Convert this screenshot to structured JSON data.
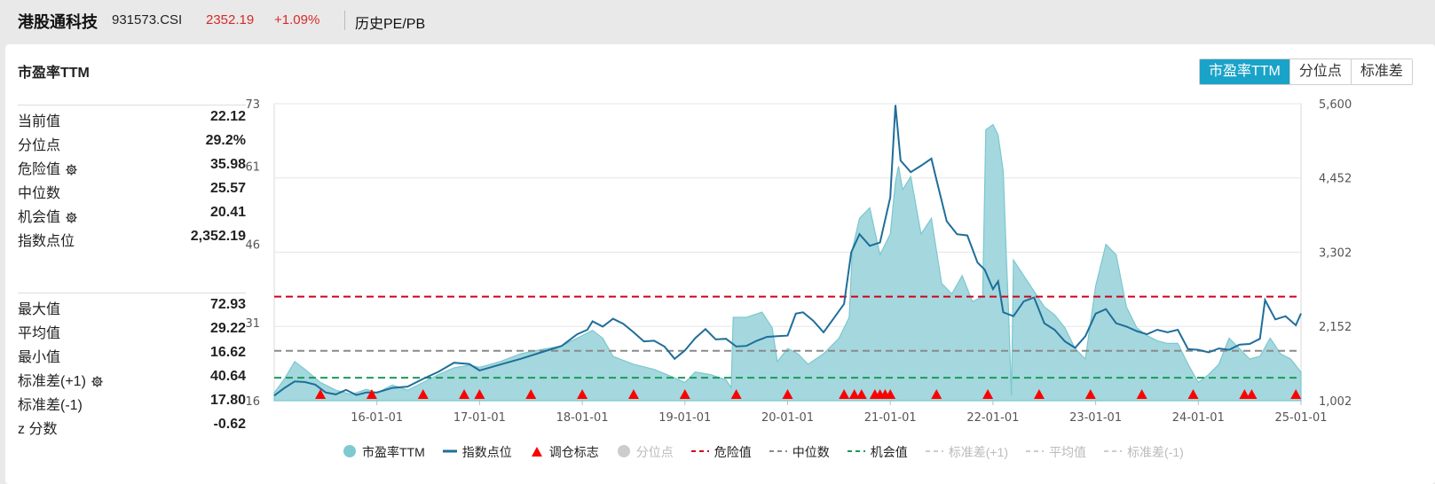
{
  "header": {
    "name": "港股通科技",
    "code": "931573.CSI",
    "price": "2352.19",
    "change": "+1.09%",
    "tab": "历史PE/PB"
  },
  "panel": {
    "title": "市盈率TTM",
    "segments": [
      {
        "label": "市盈率TTM",
        "active": true
      },
      {
        "label": "分位点",
        "active": false
      },
      {
        "label": "标准差",
        "active": false
      }
    ]
  },
  "stats_top": [
    {
      "label": "当前值",
      "value": "22.12",
      "gear": false
    },
    {
      "label": "分位点",
      "value": "29.2%",
      "gear": false
    },
    {
      "label": "危险值",
      "value": "35.98",
      "gear": true
    },
    {
      "label": "中位数",
      "value": "25.57",
      "gear": false
    },
    {
      "label": "机会值",
      "value": "20.41",
      "gear": true
    },
    {
      "label": "指数点位",
      "value": "2,352.19",
      "gear": false
    }
  ],
  "stats_bottom": [
    {
      "label": "最大值",
      "value": "72.93",
      "gear": false
    },
    {
      "label": "平均值",
      "value": "29.22",
      "gear": false
    },
    {
      "label": "最小值",
      "value": "16.62",
      "gear": false
    },
    {
      "label": "标准差(+1)",
      "value": "40.64",
      "gear": true
    },
    {
      "label": "标准差(-1)",
      "value": "17.80",
      "gear": false
    },
    {
      "label": "z 分数",
      "value": "-0.62",
      "gear": false
    }
  ],
  "colors": {
    "pe_fill": "#9fd6dc",
    "pe_stroke": "#7cc7cf",
    "index_line": "#1f6e99",
    "danger": "#d0021b",
    "median": "#8a8a8a",
    "opportunity": "#1a9a5a",
    "marker": "#ff0000",
    "accent": "#1aa3c8"
  },
  "legend": [
    {
      "label": "市盈率TTM",
      "kind": "dot",
      "color": "#7fc9d3",
      "dim": false
    },
    {
      "label": "指数点位",
      "kind": "line",
      "color": "#1f6e99",
      "dim": false
    },
    {
      "label": "调仓标志",
      "kind": "triangle",
      "color": "#ff0000",
      "dim": false
    },
    {
      "label": "分位点",
      "kind": "dot",
      "color": "#cccccc",
      "dim": true
    },
    {
      "label": "危险值",
      "kind": "dash",
      "color": "#d0021b",
      "dim": false
    },
    {
      "label": "中位数",
      "kind": "dash",
      "color": "#8a8a8a",
      "dim": false
    },
    {
      "label": "机会值",
      "kind": "dash",
      "color": "#1a9a5a",
      "dim": false
    },
    {
      "label": "标准差(+1)",
      "kind": "dash",
      "color": "#cccccc",
      "dim": true
    },
    {
      "label": "平均值",
      "kind": "dash",
      "color": "#cccccc",
      "dim": true
    },
    {
      "label": "标准差(-1)",
      "kind": "dash",
      "color": "#cccccc",
      "dim": true
    }
  ],
  "chart_data": {
    "type": "area",
    "x_ticks": [
      "16-01-01",
      "17-01-01",
      "18-01-01",
      "19-01-01",
      "20-01-01",
      "21-01-01",
      "22-01-01",
      "23-01-01",
      "24-01-01",
      "25-01-01"
    ],
    "x_range": [
      2015.0,
      2025.0
    ],
    "y_left_ticks": [
      "73",
      "61",
      "46",
      "31",
      "16"
    ],
    "y_left_range": [
      16,
      73
    ],
    "y_right_ticks": [
      "5,600",
      "4,452",
      "3,302",
      "2,152",
      "1,002"
    ],
    "y_right_range": [
      1002,
      5600
    ],
    "reference_lines": [
      {
        "name": "危险值",
        "value": 35.98
      },
      {
        "name": "中位数",
        "value": 25.57
      },
      {
        "name": "机会值",
        "value": 20.41
      }
    ],
    "series": [
      {
        "name": "市盈率TTM",
        "axis": "left",
        "points": [
          [
            2015.0,
            17.5
          ],
          [
            2015.1,
            20.2
          ],
          [
            2015.2,
            23.5
          ],
          [
            2015.3,
            22.0
          ],
          [
            2015.45,
            19.5
          ],
          [
            2015.6,
            18.0
          ],
          [
            2015.75,
            17.2
          ],
          [
            2015.9,
            18.2
          ],
          [
            2016.0,
            17.5
          ],
          [
            2016.15,
            19.0
          ],
          [
            2016.3,
            18.0
          ],
          [
            2016.45,
            19.5
          ],
          [
            2016.6,
            21.0
          ],
          [
            2016.75,
            22.3
          ],
          [
            2016.9,
            22.8
          ],
          [
            2017.0,
            22.4
          ],
          [
            2017.2,
            23.5
          ],
          [
            2017.4,
            25.0
          ],
          [
            2017.6,
            25.8
          ],
          [
            2017.8,
            26.5
          ],
          [
            2018.0,
            28.5
          ],
          [
            2018.1,
            29.5
          ],
          [
            2018.2,
            28.0
          ],
          [
            2018.3,
            24.5
          ],
          [
            2018.5,
            23.0
          ],
          [
            2018.7,
            22.0
          ],
          [
            2018.85,
            20.8
          ],
          [
            2019.0,
            19.5
          ],
          [
            2019.1,
            21.5
          ],
          [
            2019.25,
            21.0
          ],
          [
            2019.4,
            20.0
          ],
          [
            2019.45,
            18.5
          ],
          [
            2019.47,
            32.0
          ],
          [
            2019.6,
            32.0
          ],
          [
            2019.75,
            33.0
          ],
          [
            2019.85,
            30.0
          ],
          [
            2019.9,
            23.5
          ],
          [
            2020.0,
            26.0
          ],
          [
            2020.1,
            25.0
          ],
          [
            2020.2,
            23.0
          ],
          [
            2020.35,
            25.0
          ],
          [
            2020.5,
            28.0
          ],
          [
            2020.6,
            32.0
          ],
          [
            2020.63,
            45.0
          ],
          [
            2020.7,
            51.0
          ],
          [
            2020.8,
            53.0
          ],
          [
            2020.9,
            44.0
          ],
          [
            2021.0,
            48.0
          ],
          [
            2021.05,
            58.0
          ],
          [
            2021.08,
            61.0
          ],
          [
            2021.12,
            56.5
          ],
          [
            2021.2,
            59.0
          ],
          [
            2021.3,
            48.0
          ],
          [
            2021.4,
            51.0
          ],
          [
            2021.5,
            38.5
          ],
          [
            2021.6,
            36.5
          ],
          [
            2021.7,
            40.0
          ],
          [
            2021.8,
            35.0
          ],
          [
            2021.9,
            36.0
          ],
          [
            2021.93,
            68.0
          ],
          [
            2022.0,
            69.0
          ],
          [
            2022.05,
            67.0
          ],
          [
            2022.1,
            60.0
          ],
          [
            2022.13,
            44.0
          ],
          [
            2022.15,
            34.0
          ],
          [
            2022.18,
            17.0
          ],
          [
            2022.2,
            43.0
          ],
          [
            2022.3,
            40.0
          ],
          [
            2022.4,
            37.0
          ],
          [
            2022.5,
            34.0
          ],
          [
            2022.6,
            32.5
          ],
          [
            2022.7,
            30.0
          ],
          [
            2022.8,
            26.0
          ],
          [
            2022.9,
            24.0
          ],
          [
            2023.0,
            38.0
          ],
          [
            2023.1,
            46.0
          ],
          [
            2023.2,
            44.0
          ],
          [
            2023.3,
            34.0
          ],
          [
            2023.4,
            30.0
          ],
          [
            2023.5,
            28.5
          ],
          [
            2023.6,
            27.5
          ],
          [
            2023.7,
            27.0
          ],
          [
            2023.8,
            27.0
          ],
          [
            2023.9,
            23.0
          ],
          [
            2024.0,
            19.5
          ],
          [
            2024.1,
            21.0
          ],
          [
            2024.2,
            23.0
          ],
          [
            2024.3,
            28.0
          ],
          [
            2024.4,
            26.0
          ],
          [
            2024.5,
            24.0
          ],
          [
            2024.6,
            24.5
          ],
          [
            2024.7,
            28.0
          ],
          [
            2024.8,
            25.0
          ],
          [
            2024.9,
            24.0
          ],
          [
            2025.0,
            21.5
          ]
        ]
      },
      {
        "name": "指数点位",
        "axis": "right",
        "points": [
          [
            2015.0,
            1080
          ],
          [
            2015.1,
            1200
          ],
          [
            2015.2,
            1300
          ],
          [
            2015.3,
            1290
          ],
          [
            2015.4,
            1250
          ],
          [
            2015.5,
            1130
          ],
          [
            2015.6,
            1100
          ],
          [
            2015.7,
            1170
          ],
          [
            2015.8,
            1090
          ],
          [
            2015.9,
            1130
          ],
          [
            2016.0,
            1130
          ],
          [
            2016.15,
            1200
          ],
          [
            2016.3,
            1220
          ],
          [
            2016.45,
            1340
          ],
          [
            2016.6,
            1450
          ],
          [
            2016.75,
            1590
          ],
          [
            2016.9,
            1570
          ],
          [
            2017.0,
            1470
          ],
          [
            2017.2,
            1560
          ],
          [
            2017.4,
            1650
          ],
          [
            2017.6,
            1750
          ],
          [
            2017.8,
            1850
          ],
          [
            2017.95,
            2030
          ],
          [
            2018.05,
            2100
          ],
          [
            2018.1,
            2230
          ],
          [
            2018.2,
            2150
          ],
          [
            2018.3,
            2270
          ],
          [
            2018.4,
            2190
          ],
          [
            2018.5,
            2060
          ],
          [
            2018.6,
            1920
          ],
          [
            2018.7,
            1930
          ],
          [
            2018.8,
            1840
          ],
          [
            2018.9,
            1650
          ],
          [
            2019.0,
            1780
          ],
          [
            2019.1,
            1970
          ],
          [
            2019.2,
            2110
          ],
          [
            2019.3,
            1950
          ],
          [
            2019.4,
            1960
          ],
          [
            2019.5,
            1840
          ],
          [
            2019.6,
            1850
          ],
          [
            2019.7,
            1930
          ],
          [
            2019.8,
            1990
          ],
          [
            2019.9,
            2000
          ],
          [
            2020.0,
            2010
          ],
          [
            2020.08,
            2350
          ],
          [
            2020.15,
            2370
          ],
          [
            2020.25,
            2240
          ],
          [
            2020.35,
            2060
          ],
          [
            2020.45,
            2280
          ],
          [
            2020.55,
            2500
          ],
          [
            2020.62,
            3300
          ],
          [
            2020.7,
            3580
          ],
          [
            2020.8,
            3400
          ],
          [
            2020.9,
            3450
          ],
          [
            2021.0,
            4150
          ],
          [
            2021.05,
            5580
          ],
          [
            2021.1,
            4720
          ],
          [
            2021.2,
            4540
          ],
          [
            2021.3,
            4640
          ],
          [
            2021.4,
            4750
          ],
          [
            2021.45,
            4420
          ],
          [
            2021.55,
            3780
          ],
          [
            2021.65,
            3580
          ],
          [
            2021.75,
            3560
          ],
          [
            2021.85,
            3140
          ],
          [
            2021.92,
            3030
          ],
          [
            2022.0,
            2730
          ],
          [
            2022.05,
            2850
          ],
          [
            2022.1,
            2370
          ],
          [
            2022.2,
            2310
          ],
          [
            2022.3,
            2540
          ],
          [
            2022.4,
            2600
          ],
          [
            2022.5,
            2200
          ],
          [
            2022.6,
            2100
          ],
          [
            2022.7,
            1920
          ],
          [
            2022.8,
            1820
          ],
          [
            2022.9,
            2000
          ],
          [
            2023.0,
            2350
          ],
          [
            2023.1,
            2420
          ],
          [
            2023.2,
            2200
          ],
          [
            2023.3,
            2150
          ],
          [
            2023.4,
            2080
          ],
          [
            2023.5,
            2030
          ],
          [
            2023.6,
            2100
          ],
          [
            2023.7,
            2060
          ],
          [
            2023.8,
            2100
          ],
          [
            2023.9,
            1800
          ],
          [
            2024.0,
            1790
          ],
          [
            2024.1,
            1750
          ],
          [
            2024.2,
            1810
          ],
          [
            2024.3,
            1790
          ],
          [
            2024.4,
            1870
          ],
          [
            2024.5,
            1880
          ],
          [
            2024.6,
            1960
          ],
          [
            2024.65,
            2560
          ],
          [
            2024.75,
            2260
          ],
          [
            2024.85,
            2310
          ],
          [
            2024.95,
            2170
          ],
          [
            2025.0,
            2352
          ]
        ]
      }
    ],
    "rebalance_markers": [
      2015.45,
      2015.95,
      2016.45,
      2016.85,
      2017.0,
      2017.5,
      2018.0,
      2018.5,
      2019.0,
      2019.5,
      2020.0,
      2020.55,
      2020.65,
      2020.72,
      2020.85,
      2020.9,
      2020.95,
      2021.0,
      2021.45,
      2021.95,
      2022.45,
      2022.95,
      2023.45,
      2023.95,
      2024.45,
      2024.52,
      2024.95
    ],
    "grid": true,
    "legend_position": "bottom"
  }
}
